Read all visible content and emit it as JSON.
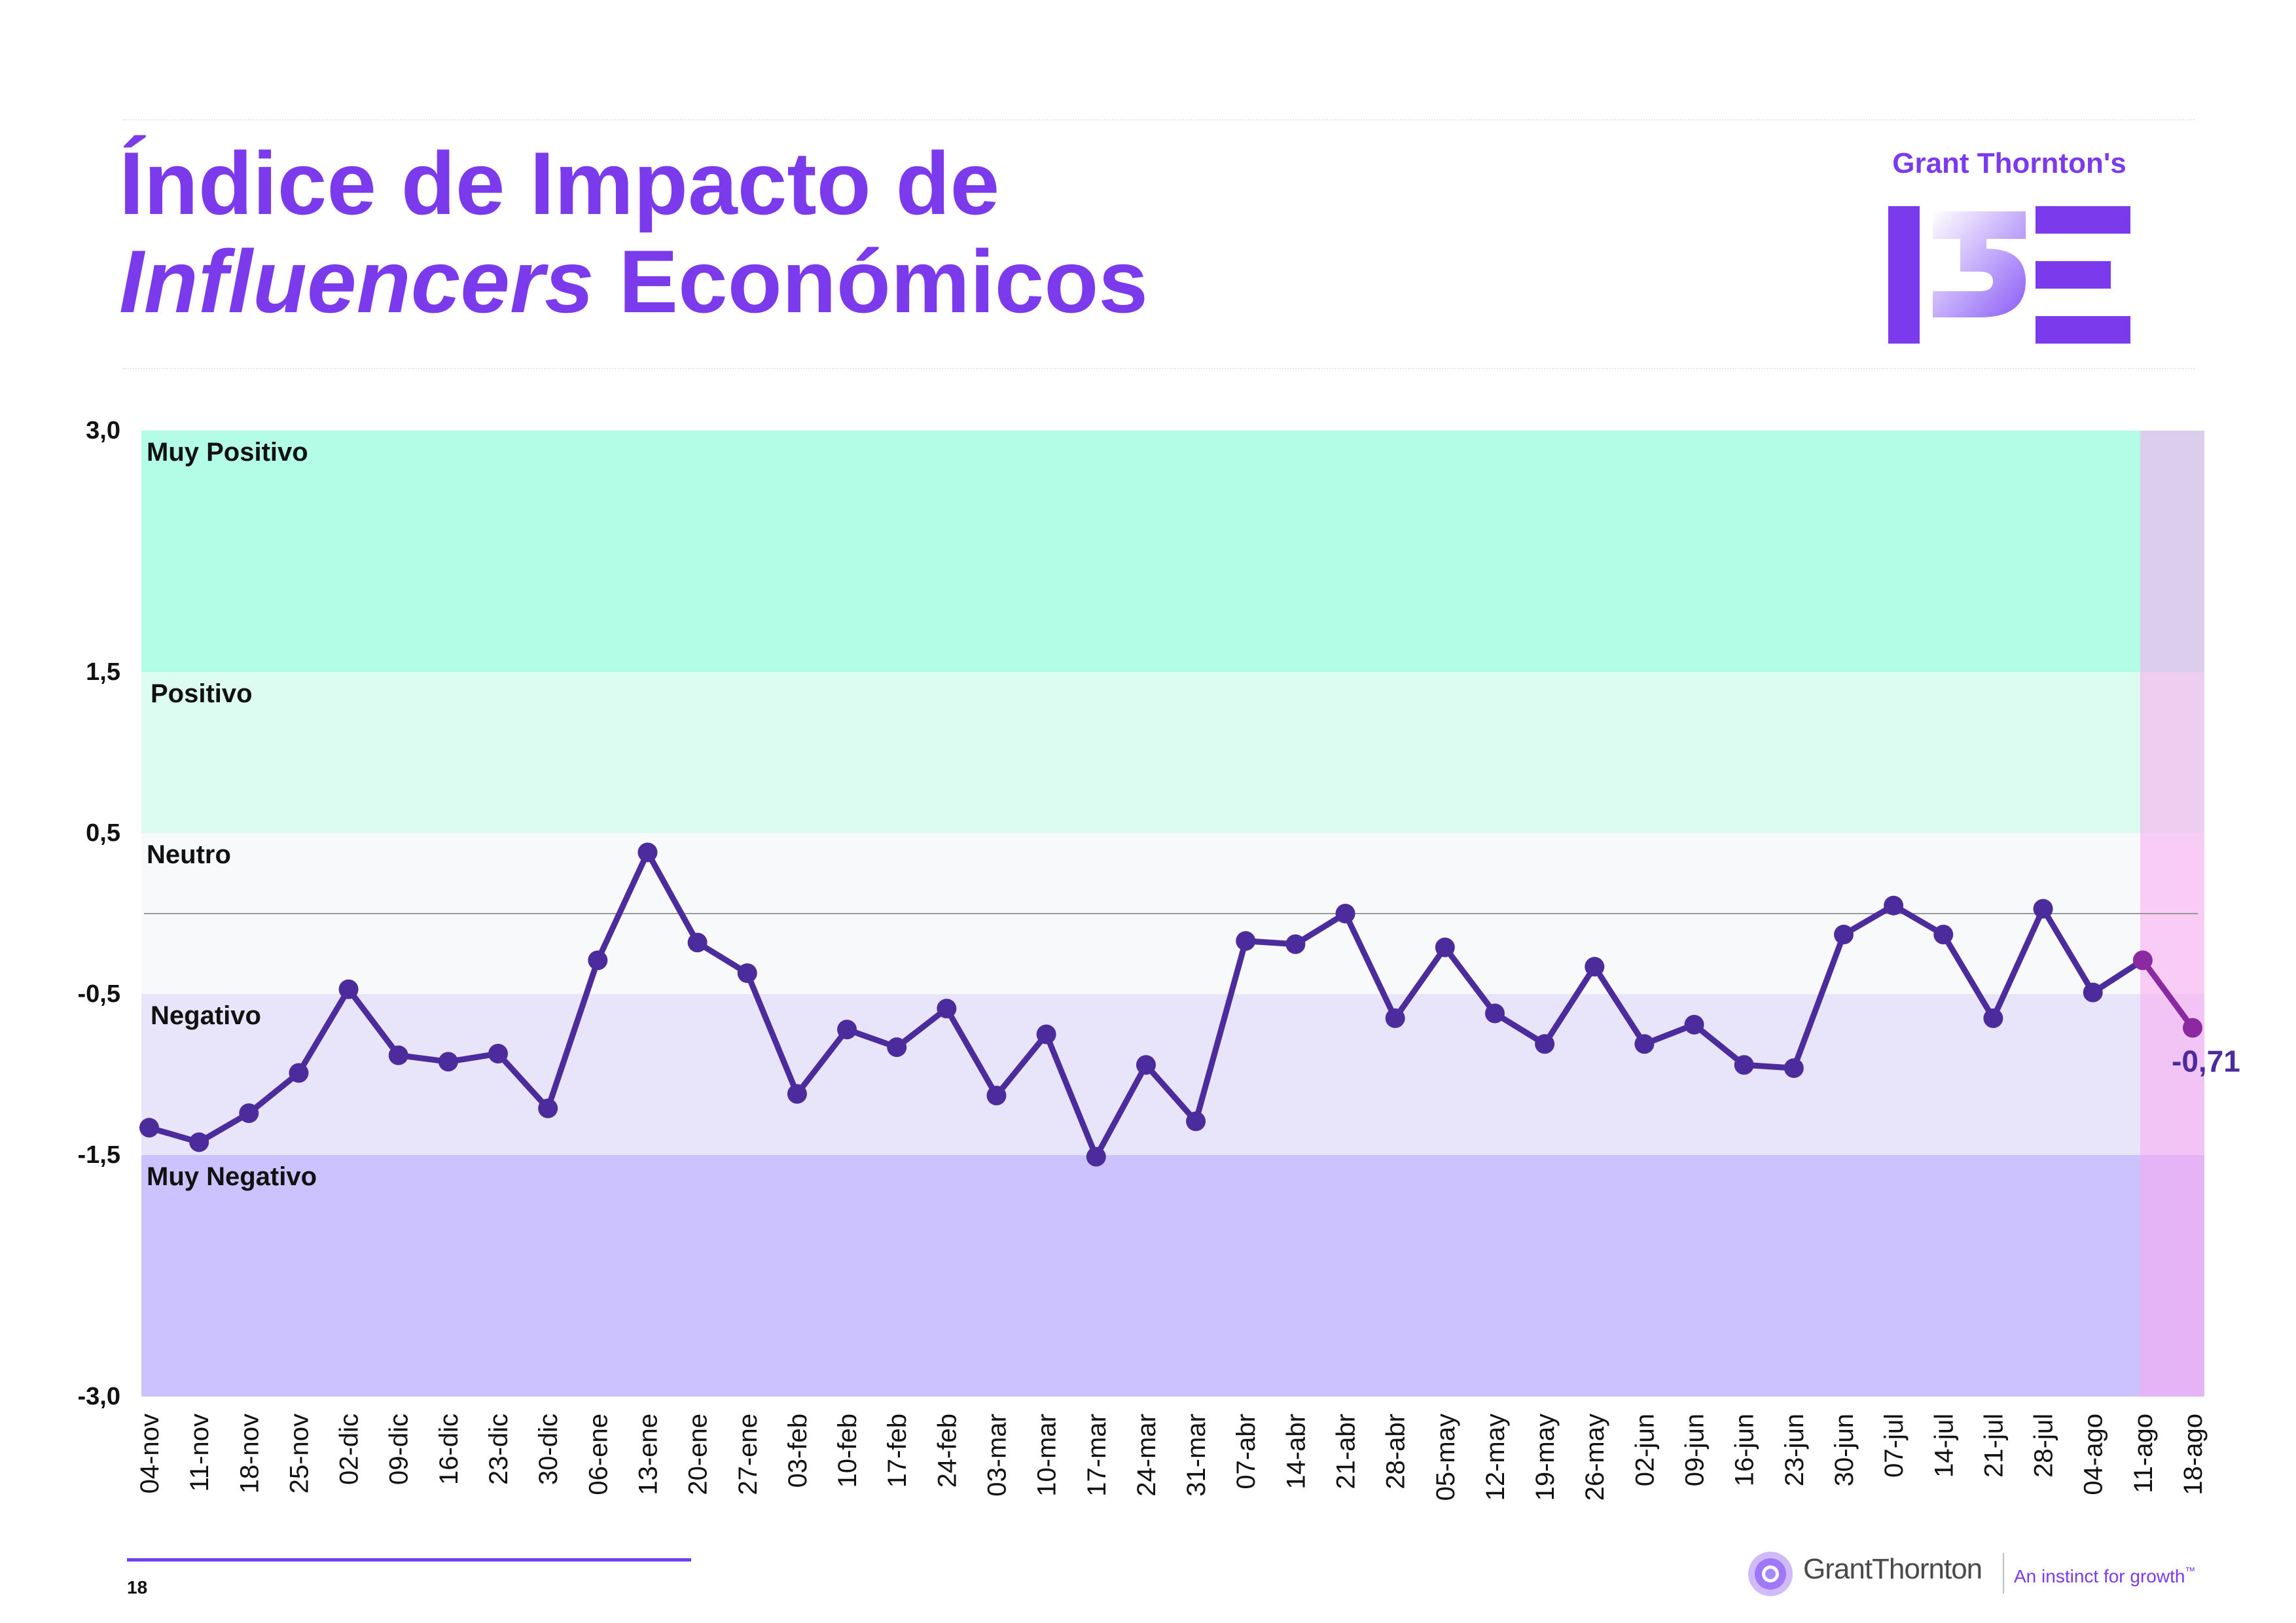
{
  "slide": {
    "title_line1": "Índice de Impacto de",
    "title_italic": "Influencers",
    "title_rest": " Económicos",
    "page_number": "18"
  },
  "brand": {
    "name": "Grant Thornton's",
    "color": "#7c3aed"
  },
  "footer": {
    "company": "GrantThornton",
    "tagline": "An instinct for growth",
    "tm": "™"
  },
  "chart_data": {
    "type": "line",
    "ylim": [
      -3.0,
      3.0
    ],
    "y_ticks": [
      {
        "value": 3.0,
        "label": "3,0"
      },
      {
        "value": 1.5,
        "label": "1,5"
      },
      {
        "value": 0.5,
        "label": "0,5"
      },
      {
        "value": -0.5,
        "label": "-0,5"
      },
      {
        "value": -1.5,
        "label": "-1,5"
      },
      {
        "value": -3.0,
        "label": "-3,0"
      }
    ],
    "zones": [
      {
        "label": "Muy Positivo",
        "from": 1.5,
        "to": 3.0,
        "color": "#b3fde6"
      },
      {
        "label": "Positivo",
        "from": 0.5,
        "to": 1.5,
        "color": "#ddfcf1"
      },
      {
        "label": "Neutro",
        "from": -0.5,
        "to": 0.5,
        "color": "#f8f9fb"
      },
      {
        "label": "Negativo",
        "from": -1.5,
        "to": -0.5,
        "color": "#e8e5fb"
      },
      {
        "label": "Muy Negativo",
        "from": -3.0,
        "to": -1.5,
        "color": "#ccc3fe"
      }
    ],
    "highlight_overlay_color": "#f9a8f0",
    "reference_line": 0,
    "categories": [
      "04-nov",
      "11-nov",
      "18-nov",
      "25-nov",
      "02-dic",
      "09-dic",
      "16-dic",
      "23-dic",
      "30-dic",
      "06-ene",
      "13-ene",
      "20-ene",
      "27-ene",
      "03-feb",
      "10-feb",
      "17-feb",
      "24-feb",
      "03-mar",
      "10-mar",
      "17-mar",
      "24-mar",
      "31-mar",
      "07-abr",
      "14-abr",
      "21-abr",
      "28-abr",
      "05-may",
      "12-may",
      "19-may",
      "26-may",
      "02-jun",
      "09-jun",
      "16-jun",
      "23-jun",
      "30-jun",
      "07-jul",
      "14-jul",
      "21-jul",
      "28-jul",
      "04-ago",
      "11-ago",
      "18-ago"
    ],
    "series": [
      {
        "values": [
          -1.33,
          -1.42,
          -1.24,
          -0.99,
          -0.47,
          -0.88,
          -0.92,
          -0.87,
          -1.21,
          -0.29,
          0.38,
          -0.18,
          -0.37,
          -1.12,
          -0.72,
          -0.83,
          -0.59,
          -1.13,
          -0.75,
          -1.51,
          -0.94,
          -1.29,
          -0.17,
          -0.19,
          0.0,
          -0.65,
          -0.21,
          -0.62,
          -0.81,
          -0.33,
          -0.81,
          -0.69,
          -0.94,
          -0.96,
          -0.13,
          0.05,
          -0.13,
          -0.65,
          0.03,
          -0.49,
          -0.29,
          -0.71
        ],
        "color": "#4c2c9c"
      }
    ],
    "highlight_segment_color": "#8b2aa0",
    "last_value_label": "-0,71"
  }
}
